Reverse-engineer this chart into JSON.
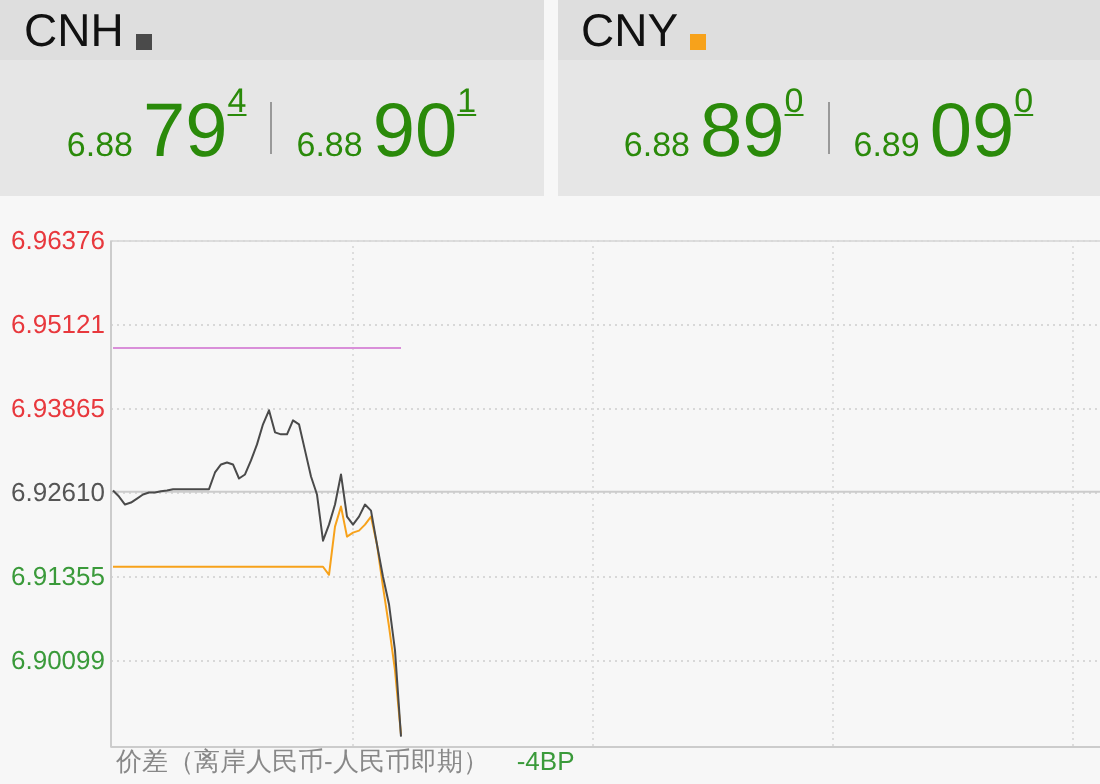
{
  "chart_data": {
    "type": "line",
    "categories": [
      null,
      null,
      null,
      null,
      null,
      null,
      null,
      null,
      null,
      null,
      null,
      null,
      null,
      null,
      null,
      null,
      null,
      null,
      null,
      null,
      null,
      null,
      null,
      null,
      null,
      null,
      null,
      null,
      null,
      null,
      null,
      null,
      null,
      null,
      null,
      null,
      null,
      null,
      null,
      null,
      null,
      null,
      null,
      null,
      null,
      null,
      null,
      null,
      null,
      null,
      null,
      null,
      null,
      null,
      null,
      null,
      null,
      null,
      null,
      null,
      null,
      null,
      null,
      null,
      null,
      null,
      null,
      null,
      null,
      null,
      null,
      null,
      null,
      null,
      null,
      null,
      null,
      null,
      null,
      null,
      null,
      null,
      null,
      null,
      null,
      null,
      null,
      null,
      null,
      null,
      null,
      null,
      null,
      null,
      null,
      null,
      null,
      null,
      null,
      null,
      null,
      null,
      null,
      null,
      null,
      null,
      null,
      null,
      null,
      null,
      null,
      null,
      null,
      null,
      null,
      null,
      null,
      null,
      null,
      null,
      null,
      null,
      null,
      null,
      null,
      null,
      null,
      null,
      null,
      null,
      null,
      null,
      null,
      null,
      null,
      null,
      null,
      null,
      null,
      null,
      null,
      null,
      null,
      null,
      null,
      null,
      null,
      null,
      null,
      null,
      null,
      null,
      null,
      null,
      null,
      null,
      null,
      null,
      null,
      null,
      null,
      null,
      null,
      null,
      null
    ],
    "series": [
      {
        "name": "CNH",
        "color": "#4a4a4a",
        "values": [
          6.9263,
          6.9254,
          6.9242,
          6.9245,
          6.9251,
          6.9257,
          6.926,
          6.926,
          6.9262,
          6.9263,
          6.9265,
          6.9265,
          6.9265,
          6.9265,
          6.9265,
          6.9265,
          6.9265,
          6.929,
          6.9302,
          6.9305,
          6.9302,
          6.9281,
          6.9287,
          6.9308,
          6.9332,
          6.9362,
          6.9383,
          6.935,
          6.9347,
          6.9347,
          6.9368,
          6.9362,
          6.9323,
          6.9284,
          6.9257,
          6.9188,
          6.9212,
          6.9242,
          6.9287,
          6.9224,
          6.9212,
          6.9224,
          6.9242,
          6.9233,
          6.9182,
          6.9134,
          6.9093,
          6.9024,
          6.8895,
          null,
          null,
          null,
          null,
          null,
          null,
          null,
          null,
          null,
          null,
          null,
          null,
          null,
          null,
          null,
          null,
          null,
          null,
          null,
          null,
          null,
          null,
          null,
          null,
          null,
          null,
          null,
          null,
          null,
          null,
          null,
          null,
          null,
          null,
          null,
          null,
          null,
          null,
          null,
          null,
          null,
          null,
          null,
          null,
          null,
          null,
          null,
          null,
          null,
          null,
          null,
          null,
          null,
          null,
          null,
          null,
          null,
          null,
          null,
          null,
          null,
          null,
          null,
          null,
          null,
          null,
          null,
          null,
          null,
          null,
          null,
          null,
          null,
          null,
          null,
          null,
          null,
          null,
          null,
          null,
          null,
          null,
          null,
          null,
          null,
          null,
          null,
          null,
          null,
          null,
          null,
          null,
          null,
          null,
          null,
          null,
          null,
          null,
          null,
          null,
          null,
          null,
          null,
          null,
          null,
          null,
          null,
          null,
          null,
          null,
          null,
          null,
          null,
          null,
          null,
          null
        ]
      },
      {
        "name": "CNY",
        "color": "#f7a21b",
        "values": [
          6.9149,
          6.9149,
          6.9149,
          6.9149,
          6.9149,
          6.9149,
          6.9149,
          6.9149,
          6.9149,
          6.9149,
          6.9149,
          6.9149,
          6.9149,
          6.9149,
          6.9149,
          6.9149,
          6.9149,
          6.9149,
          6.9149,
          6.9149,
          6.9149,
          6.9149,
          6.9149,
          6.9149,
          6.9149,
          6.9149,
          6.9149,
          6.9149,
          6.9149,
          6.9149,
          6.9149,
          6.9149,
          6.9149,
          6.9149,
          6.9149,
          6.9149,
          6.9137,
          6.9209,
          6.9239,
          6.9194,
          6.92,
          6.9203,
          6.9212,
          6.9224,
          6.9182,
          6.9119,
          6.906,
          6.8994,
          6.8898,
          null,
          null,
          null,
          null,
          null,
          null,
          null,
          null,
          null,
          null,
          null,
          null,
          null,
          null,
          null,
          null,
          null,
          null,
          null,
          null,
          null,
          null,
          null,
          null,
          null,
          null,
          null,
          null,
          null,
          null,
          null,
          null,
          null,
          null,
          null,
          null,
          null,
          null,
          null,
          null,
          null,
          null,
          null,
          null,
          null,
          null,
          null,
          null,
          null,
          null,
          null,
          null,
          null,
          null,
          null,
          null,
          null,
          null,
          null,
          null,
          null,
          null,
          null,
          null,
          null,
          null,
          null,
          null,
          null,
          null,
          null,
          null,
          null,
          null,
          null,
          null,
          null,
          null,
          null,
          null,
          null,
          null,
          null,
          null,
          null,
          null,
          null,
          null,
          null,
          null,
          null,
          null,
          null,
          null,
          null,
          null,
          null,
          null,
          null,
          null,
          null,
          null,
          null,
          null,
          null,
          null,
          null,
          null,
          null,
          null,
          null,
          null,
          null,
          null,
          null,
          null
        ]
      },
      {
        "color": "#d98fd9",
        "values": [
          6.9476,
          6.9476,
          6.9476,
          6.9476,
          6.9476,
          6.9476,
          6.9476,
          6.9476,
          6.9476,
          6.9476,
          6.9476,
          6.9476,
          6.9476,
          6.9476,
          6.9476,
          6.9476,
          6.9476,
          6.9476,
          6.9476,
          6.9476,
          6.9476,
          6.9476,
          6.9476,
          6.9476,
          6.9476,
          6.9476,
          6.9476,
          6.9476,
          6.9476,
          6.9476,
          6.9476,
          6.9476,
          6.9476,
          6.9476,
          6.9476,
          6.9476,
          6.9476,
          6.9476,
          6.9476,
          6.9476,
          6.9476,
          6.9476,
          6.9476,
          6.9476,
          6.9476,
          6.9476,
          6.9476,
          6.9476,
          6.9476,
          null,
          null,
          null,
          null,
          null,
          null,
          null,
          null,
          null,
          null,
          null,
          null,
          null,
          null,
          null,
          null,
          null,
          null,
          null,
          null,
          null,
          null,
          null,
          null,
          null,
          null,
          null,
          null,
          null,
          null,
          null,
          null,
          null,
          null,
          null,
          null,
          null,
          null,
          null,
          null,
          null,
          null,
          null,
          null,
          null,
          null,
          null,
          null,
          null,
          null,
          null,
          null,
          null,
          null,
          null,
          null,
          null,
          null,
          null,
          null,
          null,
          null,
          null,
          null,
          null,
          null,
          null,
          null,
          null,
          null,
          null,
          null,
          null,
          null,
          null,
          null,
          null,
          null,
          null,
          null,
          null,
          null,
          null,
          null,
          null,
          null,
          null,
          null,
          null,
          null,
          null,
          null,
          null,
          null,
          null,
          null,
          null,
          null,
          null,
          null,
          null,
          null,
          null,
          null,
          null,
          null,
          null,
          null,
          null,
          null,
          null,
          null,
          null,
          null,
          null,
          null
        ]
      }
    ],
    "ylim": [
      6.8881,
      6.96376
    ],
    "yticks": [
      6.96376,
      6.95121,
      6.93865,
      {
        "value": 6.9261,
        "label": "6.92610"
      },
      6.91355,
      6.90099
    ],
    "ref_lines": [
      {
        "axis": "y",
        "value": 6.9261,
        "color": "#cccccc"
      }
    ],
    "annotations": [
      "6.88",
      "79$^{4}$",
      "6.88",
      "90$^{1}$",
      "6.88",
      "89$^{0}$",
      "6.89",
      "09$^{0}$",
      "价差（离岸人民币-人民币即期）",
      "-4BP"
    ],
    "grid": true,
    "legend": "top",
    "tick_labels": "y",
    "line_style": "solid",
    "marker": "none"
  }
}
